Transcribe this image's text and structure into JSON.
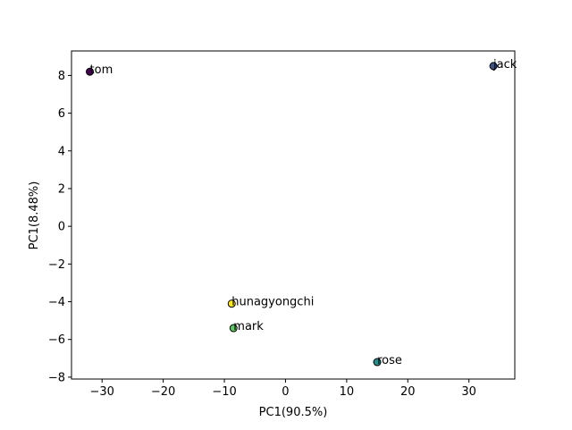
{
  "chart_data": {
    "type": "scatter",
    "title": "",
    "xlabel": "PC1(90.5%)",
    "ylabel": "PC1(8.48%)",
    "xlim": [
      -35.0,
      37.5
    ],
    "ylim": [
      -8.1,
      9.3
    ],
    "xticks": [
      -30,
      -20,
      -10,
      0,
      10,
      20,
      30
    ],
    "yticks": [
      -8,
      -6,
      -4,
      -2,
      0,
      2,
      4,
      6,
      8
    ],
    "grid": false,
    "points": [
      {
        "label": "tom",
        "x": -32.0,
        "y": 8.2,
        "color": "#440154"
      },
      {
        "label": "jack",
        "x": 34.0,
        "y": 8.5,
        "color": "#3b528b"
      },
      {
        "label": "rose",
        "x": 15.0,
        "y": -7.2,
        "color": "#21918c"
      },
      {
        "label": "mark",
        "x": -8.5,
        "y": -5.4,
        "color": "#5ec962"
      },
      {
        "label": "hunagyongchi",
        "x": -8.8,
        "y": -4.1,
        "color": "#fde725"
      }
    ]
  }
}
